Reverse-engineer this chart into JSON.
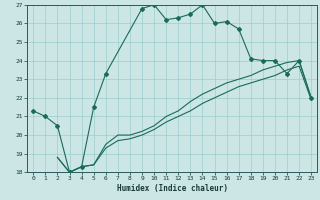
{
  "xlabel": "Humidex (Indice chaleur)",
  "ylabel": "",
  "bg_color": "#cce5e5",
  "grid_color": "#9ecece",
  "line_color": "#1a6b5a",
  "xlim": [
    -0.5,
    23.5
  ],
  "ylim": [
    18,
    27
  ],
  "xticks": [
    0,
    1,
    2,
    3,
    4,
    5,
    6,
    7,
    8,
    9,
    10,
    11,
    12,
    13,
    14,
    15,
    16,
    17,
    18,
    19,
    20,
    21,
    22,
    23
  ],
  "yticks": [
    18,
    19,
    20,
    21,
    22,
    23,
    24,
    25,
    26,
    27
  ],
  "line1_x": [
    0,
    1,
    2,
    3,
    4,
    5,
    6,
    9,
    10,
    11,
    12,
    13,
    14,
    15,
    16,
    17,
    18,
    19,
    20,
    21,
    22,
    23
  ],
  "line1_y": [
    21.3,
    21.0,
    20.5,
    18.0,
    18.3,
    21.5,
    23.3,
    26.8,
    27.0,
    26.2,
    26.3,
    26.5,
    27.0,
    26.0,
    26.1,
    25.7,
    24.1,
    24.0,
    24.0,
    23.3,
    24.0,
    22.0
  ],
  "line2_x": [
    2,
    3,
    4,
    5,
    6,
    7,
    8,
    9,
    10,
    11,
    12,
    13,
    14,
    15,
    16,
    17,
    18,
    19,
    20,
    21,
    22,
    23
  ],
  "line2_y": [
    18.8,
    18.0,
    18.3,
    18.4,
    19.5,
    20.0,
    20.0,
    20.2,
    20.5,
    21.0,
    21.3,
    21.8,
    22.2,
    22.5,
    22.8,
    23.0,
    23.2,
    23.5,
    23.7,
    23.9,
    24.0,
    22.0
  ],
  "line3_x": [
    2,
    3,
    4,
    5,
    6,
    7,
    8,
    9,
    10,
    11,
    12,
    13,
    14,
    15,
    16,
    17,
    18,
    19,
    20,
    21,
    22,
    23
  ],
  "line3_y": [
    18.8,
    18.0,
    18.3,
    18.4,
    19.3,
    19.7,
    19.8,
    20.0,
    20.3,
    20.7,
    21.0,
    21.3,
    21.7,
    22.0,
    22.3,
    22.6,
    22.8,
    23.0,
    23.2,
    23.5,
    23.7,
    21.9
  ]
}
